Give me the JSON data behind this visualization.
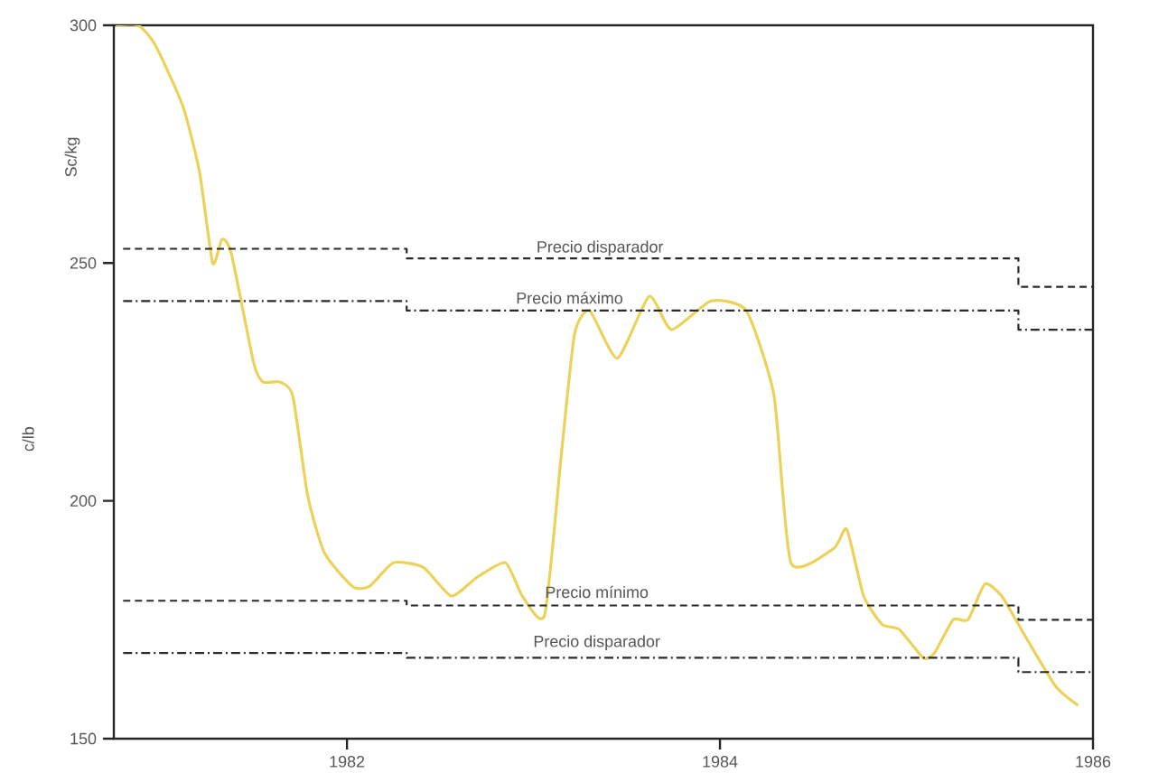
{
  "chart_data": {
    "type": "line",
    "ylabel": "c/lb",
    "annotations": [
      "Sc/kg"
    ],
    "xlim": [
      1980.75,
      1986
    ],
    "xticks": [
      1982,
      1984,
      1986
    ],
    "ylim": [
      150,
      300
    ],
    "yticks": [
      150,
      200,
      250,
      300
    ],
    "grid": false,
    "series": [
      {
        "color": "#ecd25a",
        "line_style": "solid",
        "x": [
          1980.76,
          1980.88,
          1980.97,
          1981.12,
          1981.21,
          1981.28,
          1981.33,
          1981.38,
          1981.5,
          1981.55,
          1981.64,
          1981.71,
          1981.79,
          1981.88,
          1982.03,
          1982.12,
          1982.25,
          1982.41,
          1982.56,
          1982.7,
          1982.85,
          1982.94,
          1983.06,
          1983.15,
          1983.22,
          1983.3,
          1983.45,
          1983.62,
          1983.74,
          1983.95,
          1984.14,
          1984.29,
          1984.38,
          1984.61,
          1984.68,
          1984.77,
          1984.87,
          1984.96,
          1985.09,
          1985.15,
          1985.25,
          1985.33,
          1985.42,
          1985.51,
          1985.63,
          1985.8,
          1985.92
        ],
        "values": [
          300,
          300,
          296,
          283,
          269,
          250,
          255,
          252,
          229,
          225,
          225,
          222,
          201,
          189,
          182,
          182,
          187,
          186,
          180,
          184,
          187,
          180,
          176,
          210,
          235,
          240,
          230,
          243,
          236,
          242,
          240,
          222,
          187,
          190,
          194,
          180,
          174,
          173,
          167,
          168,
          175,
          175,
          182.5,
          180,
          172,
          161,
          157
        ]
      },
      {
        "type": "step",
        "name": "Precio disparador",
        "color": "#2a2a2a",
        "line_style": "dashed",
        "x": [
          1980.8,
          1982.32,
          1985.6,
          1986
        ],
        "values": [
          253,
          251,
          245,
          245
        ]
      },
      {
        "type": "step",
        "name": "Precio máximo",
        "color": "#2a2a2a",
        "line_style": "dashdot",
        "x": [
          1980.8,
          1982.32,
          1985.6,
          1986
        ],
        "values": [
          242,
          240,
          236,
          236
        ]
      },
      {
        "type": "step",
        "name": "Precio mínimo",
        "color": "#2a2a2a",
        "line_style": "dashed",
        "x": [
          1980.8,
          1982.32,
          1985.6,
          1986
        ],
        "values": [
          179,
          178,
          175,
          175
        ]
      },
      {
        "type": "step",
        "name": "Precio disparador",
        "color": "#2a2a2a",
        "line_style": "dashdot",
        "x": [
          1980.8,
          1982.32,
          1985.6,
          1986
        ],
        "values": [
          168,
          167,
          164,
          164
        ]
      }
    ]
  }
}
